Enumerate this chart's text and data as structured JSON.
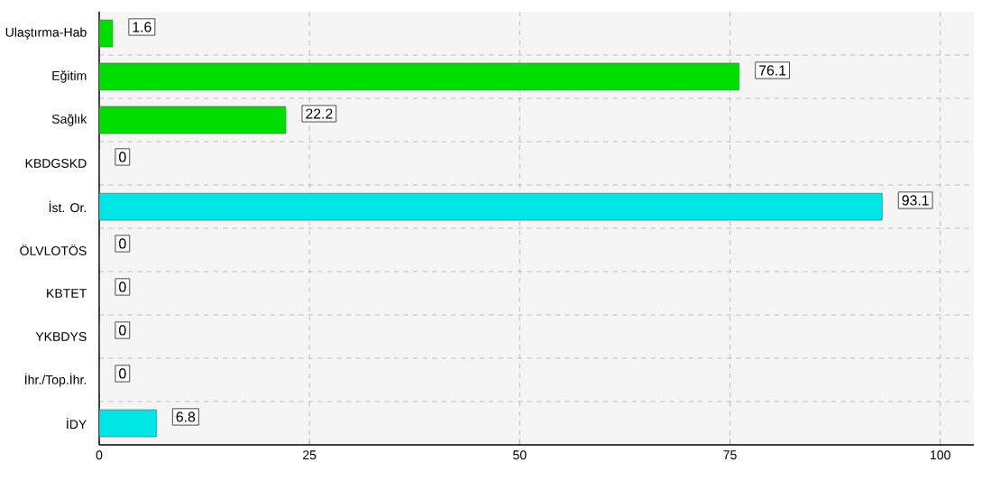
{
  "chart_data": {
    "type": "bar",
    "orientation": "horizontal",
    "categories": [
      "Ulaştırma-Hab",
      "Eğitim",
      "Sağlık",
      "KBDGSKD",
      "İst. Or.",
      "ÖLVLOTÖS",
      "KBTET",
      "YKBDYS",
      "İhr./Top.İhr.",
      "İDY"
    ],
    "values": [
      1.6,
      76.1,
      22.2,
      0,
      93.1,
      0,
      0,
      0,
      0,
      6.8
    ],
    "value_labels": [
      "1.6",
      "76.1",
      "22.2",
      "0",
      "93.1",
      "0",
      "0",
      "0",
      "0",
      "6.8"
    ],
    "colors": [
      "#00dd00",
      "#00dd00",
      "#00dd00",
      "#00e5e5",
      "#00e5e5",
      "#00e5e5",
      "#00e5e5",
      "#00e5e5",
      "#00e5e5",
      "#00e5e5"
    ],
    "xlim": [
      0,
      104
    ],
    "xticks": [
      0,
      25,
      50,
      75,
      100
    ],
    "grid": true
  }
}
